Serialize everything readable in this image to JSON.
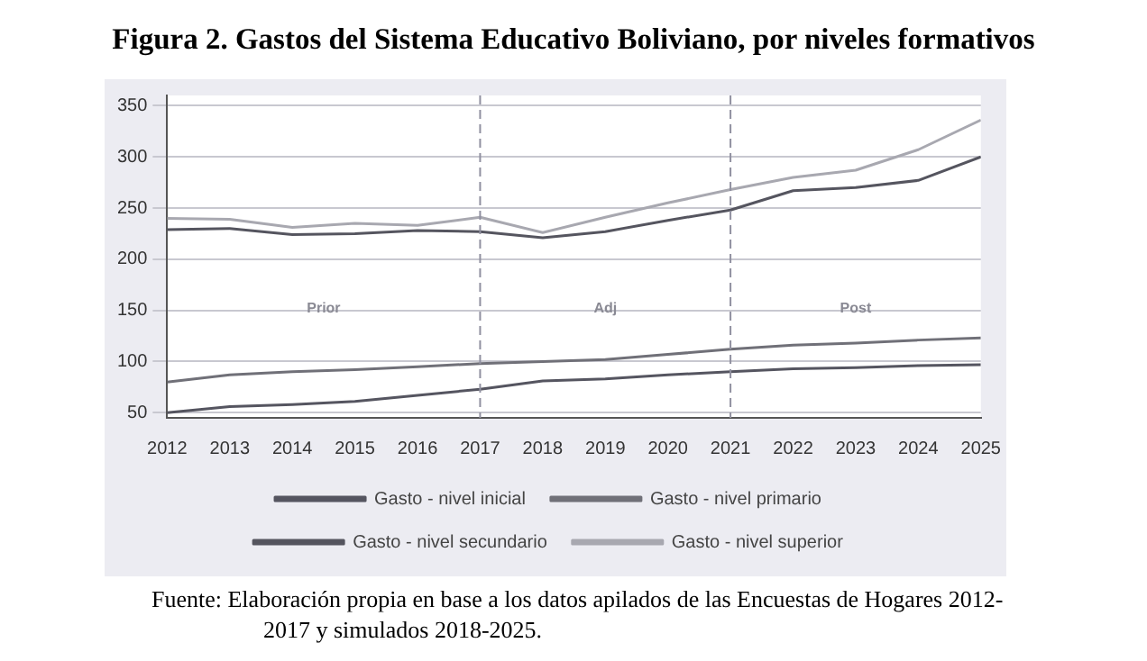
{
  "chart_data": {
    "type": "line",
    "title": "Figura 2. Gastos del Sistema Educativo Boliviano, por niveles formativos",
    "x": [
      2012,
      2013,
      2014,
      2015,
      2016,
      2017,
      2018,
      2019,
      2020,
      2021,
      2022,
      2023,
      2024,
      2025
    ],
    "xlim": [
      2012,
      2025
    ],
    "xticks": [
      2012,
      2013,
      2014,
      2015,
      2016,
      2017,
      2018,
      2019,
      2020,
      2021,
      2022,
      2023,
      2024,
      2025
    ],
    "ylim": [
      45,
      360
    ],
    "yticks": [
      50,
      100,
      150,
      200,
      250,
      300,
      350
    ],
    "series": [
      {
        "name": "Gasto - nivel inicial",
        "color": "#555560",
        "values": [
          50,
          56,
          58,
          61,
          67,
          73,
          81,
          83,
          87,
          90,
          93,
          94,
          96,
          97
        ]
      },
      {
        "name": "Gasto - nivel primario",
        "color": "#707078",
        "values": [
          80,
          87,
          90,
          92,
          95,
          98,
          100,
          102,
          107,
          112,
          116,
          118,
          121,
          123
        ]
      },
      {
        "name": "Gasto - nivel secundario",
        "color": "#55555f",
        "values": [
          229,
          230,
          224,
          225,
          228,
          227,
          221,
          227,
          238,
          248,
          267,
          270,
          277,
          300
        ]
      },
      {
        "name": "Gasto - nivel superior",
        "color": "#a8a8b0",
        "values": [
          240,
          239,
          231,
          235,
          233,
          241,
          226,
          241,
          255,
          268,
          280,
          287,
          307,
          336
        ]
      }
    ],
    "ref_lines": [
      {
        "axis": "x",
        "value": 2017,
        "color": "#9090a0",
        "line_style": "dashed"
      },
      {
        "axis": "x",
        "value": 2021,
        "color": "#9090a0",
        "line_style": "dashed"
      }
    ],
    "annotations": [
      "Prior",
      "Adj",
      "Post",
      "Fuente: Elaboración propia en base a los datos apilados de las Encuestas de Hogares 2012-2017 y simulados 2018-2025."
    ],
    "grid": "y",
    "legend": "bottom",
    "marker": "none",
    "line_style": "solid"
  }
}
